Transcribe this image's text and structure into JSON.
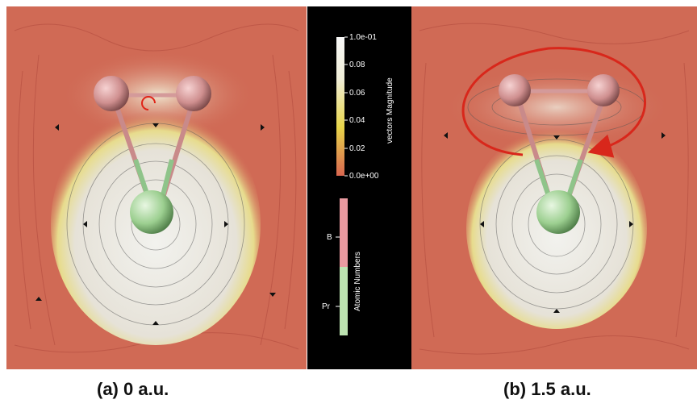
{
  "panels": [
    {
      "caption": "(a) 0 a.u."
    },
    {
      "caption": "(b) 1.5 a.u."
    }
  ],
  "colorbar": {
    "title": "vectors Magnitude",
    "ticks": [
      "1.0e-01",
      "0.08",
      "0.06",
      "0.04",
      "0.02",
      "0.0e+00"
    ],
    "colors": {
      "low": "#d9664f",
      "mid": "#e8d54a",
      "high": "#f5f5f5"
    }
  },
  "atomic_legend": {
    "title": "Atomic Numbers",
    "entries": [
      {
        "label": "B",
        "color": "#e99aa0"
      },
      {
        "label": "Pr",
        "color": "#bde3b1"
      }
    ]
  },
  "colors": {
    "background": "#d06a55",
    "vortex": "#e9e9e4",
    "arrow": "#d8271b"
  }
}
